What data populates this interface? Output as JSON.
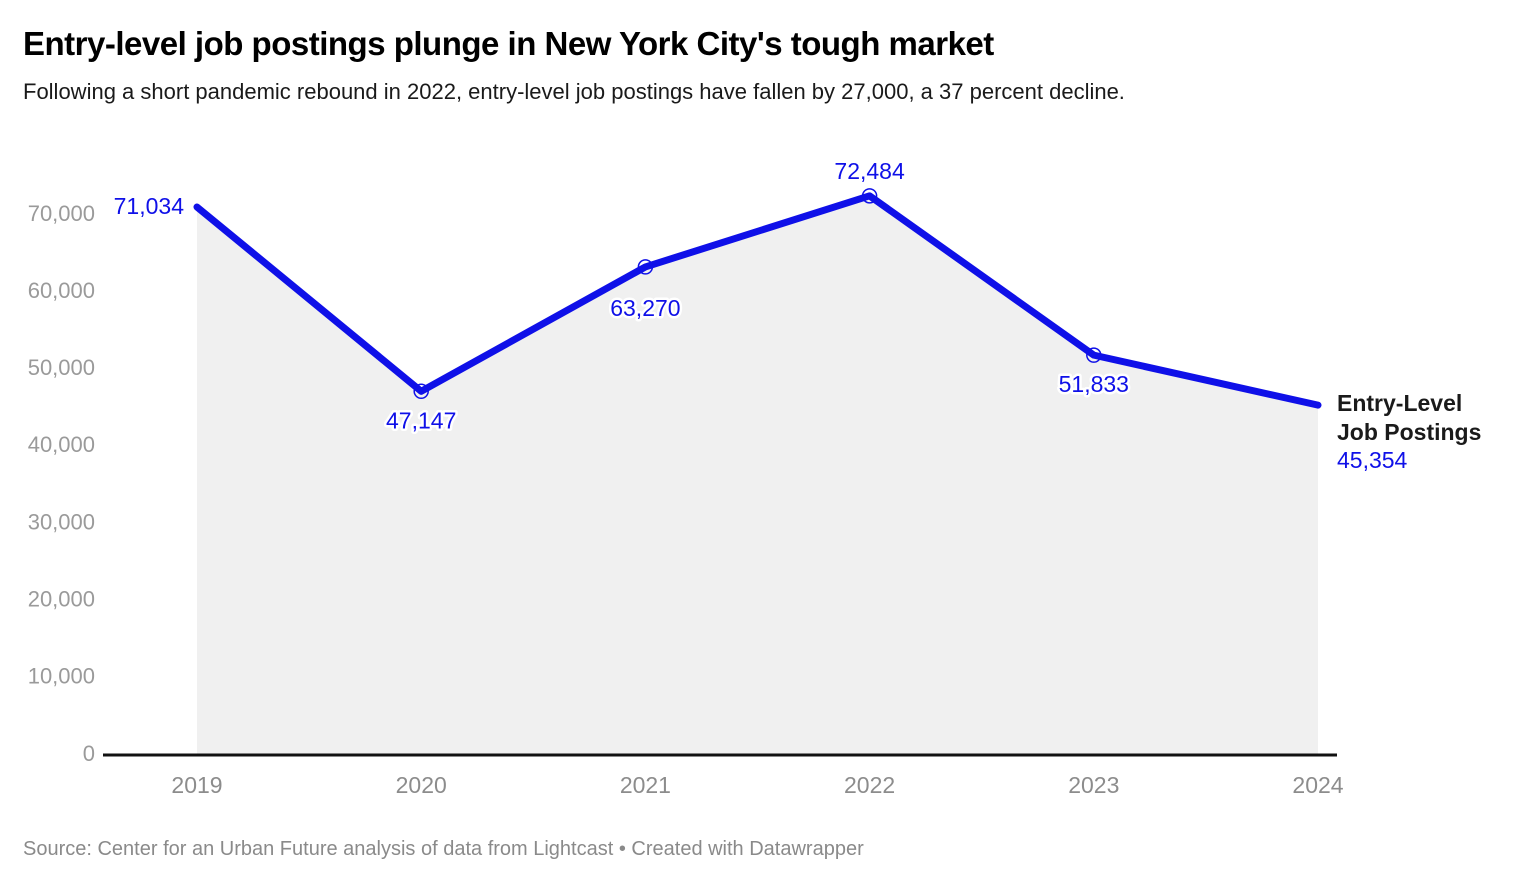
{
  "header": {
    "title": "Entry-level job postings plunge in New York City's tough market",
    "subtitle": "Following a short pandemic rebound in 2022, entry-level job postings have fallen by 27,000, a 37 percent decline."
  },
  "chart_data": {
    "type": "area",
    "title": "Entry-level job postings plunge in New York City's tough market",
    "subtitle": "Following a short pandemic rebound in 2022, entry-level job postings have fallen by 27,000, a 37 percent decline.",
    "x": [
      "2019",
      "2020",
      "2021",
      "2022",
      "2023",
      "2024"
    ],
    "series": [
      {
        "name": "Entry-Level Job Postings",
        "values": [
          71034,
          47147,
          63270,
          72484,
          51833,
          45354
        ]
      }
    ],
    "point_labels": [
      "71,034",
      "47,147",
      "63,270",
      "72,484",
      "51,833",
      "45,354"
    ],
    "label_placements": [
      "left",
      "below",
      "below-far",
      "above",
      "below",
      "none"
    ],
    "marker_point_indices": [
      1,
      2,
      3,
      4
    ],
    "xlabel": "",
    "ylabel": "",
    "ylim": [
      0,
      75000
    ],
    "yticks": [
      0,
      10000,
      20000,
      30000,
      40000,
      50000,
      60000,
      70000
    ],
    "ytick_labels": [
      "0",
      "10,000",
      "20,000",
      "30,000",
      "40,000",
      "50,000",
      "60,000",
      "70,000"
    ],
    "grid": false,
    "legend_position": "end-of-line",
    "annotation": {
      "line1": "Entry-Level",
      "line2": "Job Postings",
      "value": "45,354"
    },
    "colors": {
      "line": "#0f10e8",
      "area": "#f0f0f0",
      "point_label_text": "#0f10e8",
      "y_axis_text": "#9a9a9a",
      "x_axis_text": "#8c8c8c",
      "baseline": "#111111",
      "annotation_text": "#1a1a1a",
      "annotation_value": "#0f10e8"
    }
  },
  "footer": {
    "source": "Source: Center for an Urban Future analysis of data from Lightcast • Created with Datawrapper"
  }
}
